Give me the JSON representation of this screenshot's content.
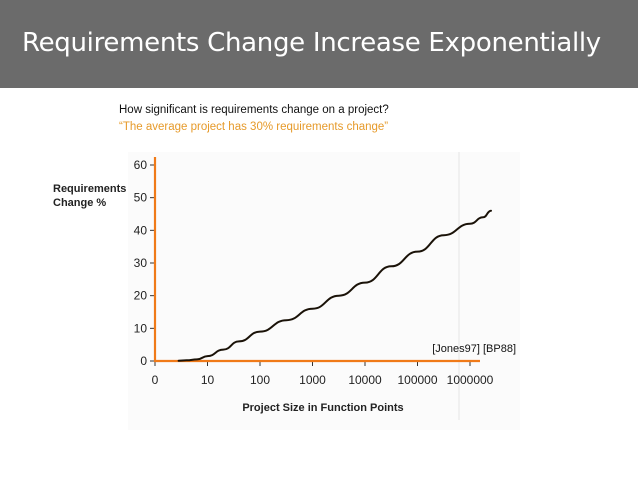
{
  "slide": {
    "title": "Requirements Change Increase Exponentially",
    "question": "How significant is requirements change on a project?",
    "quote": "“The average project has 30% requirements change”"
  },
  "colors": {
    "title_bg": "#6b6b6b",
    "axis": "#f07a18",
    "curve": "#1a1208",
    "quote": "#e69a2a"
  },
  "chart_data": {
    "type": "line",
    "title": "",
    "xlabel": "Project Size in Function Points",
    "ylabel_lines": [
      "Requirements",
      "Change %"
    ],
    "x_tick_labels": [
      "0",
      "10",
      "100",
      "1000",
      "10000",
      "100000",
      "1000000"
    ],
    "y_tick_labels": [
      "0",
      "10",
      "20",
      "30",
      "40",
      "50",
      "60"
    ],
    "x_scale": "log-index (0 = 0, 1 = 10, 2 = 100, ... 6 = 1000000)",
    "xlim": [
      0,
      6.4
    ],
    "ylim": [
      0,
      60
    ],
    "grid": false,
    "citation": "[Jones97] [BP88]",
    "series": [
      {
        "name": "Requirements Change %",
        "x": [
          0.45,
          0.6,
          0.8,
          1.0,
          1.3,
          1.6,
          2.0,
          2.5,
          3.0,
          3.5,
          4.0,
          4.5,
          5.0,
          5.5,
          6.0,
          6.25,
          6.4
        ],
        "values": [
          0.1,
          0.2,
          0.5,
          1.5,
          3.5,
          6,
          9,
          12.5,
          16,
          20,
          24,
          29,
          33.5,
          38.5,
          42,
          44,
          46
        ]
      }
    ]
  }
}
